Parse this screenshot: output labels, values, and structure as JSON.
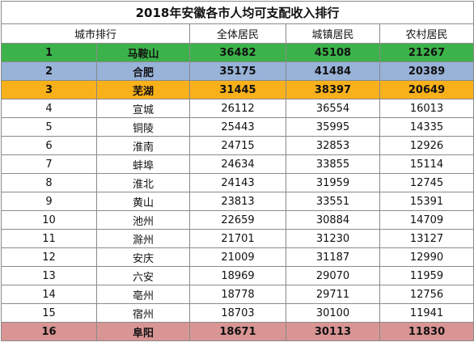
{
  "title": "2018年安徽各市人均可支配收入排行",
  "headers": {
    "rank_city": "城市排行",
    "overall": "全体居民",
    "urban": "城镇居民",
    "rural": "农村居民"
  },
  "rows": [
    {
      "rank": "1",
      "city": "马鞍山",
      "overall": "36482",
      "urban": "45108",
      "rural": "21267",
      "color": "#3cb34a",
      "bold": true
    },
    {
      "rank": "2",
      "city": "合肥",
      "overall": "35175",
      "urban": "41484",
      "rural": "20389",
      "color": "#98b2d8",
      "bold": true
    },
    {
      "rank": "3",
      "city": "芜湖",
      "overall": "31445",
      "urban": "38397",
      "rural": "20649",
      "color": "#f9b11b",
      "bold": true
    },
    {
      "rank": "4",
      "city": "宣城",
      "overall": "26112",
      "urban": "36554",
      "rural": "16013",
      "color": "",
      "bold": false
    },
    {
      "rank": "5",
      "city": "铜陵",
      "overall": "25443",
      "urban": "35995",
      "rural": "14335",
      "color": "",
      "bold": false
    },
    {
      "rank": "6",
      "city": "淮南",
      "overall": "24715",
      "urban": "32853",
      "rural": "12926",
      "color": "",
      "bold": false
    },
    {
      "rank": "7",
      "city": "蚌埠",
      "overall": "24634",
      "urban": "33855",
      "rural": "15114",
      "color": "",
      "bold": false
    },
    {
      "rank": "8",
      "city": "淮北",
      "overall": "24143",
      "urban": "31959",
      "rural": "12745",
      "color": "",
      "bold": false
    },
    {
      "rank": "9",
      "city": "黄山",
      "overall": "23813",
      "urban": "33551",
      "rural": "15391",
      "color": "",
      "bold": false
    },
    {
      "rank": "10",
      "city": "池州",
      "overall": "22659",
      "urban": "30884",
      "rural": "14709",
      "color": "",
      "bold": false
    },
    {
      "rank": "11",
      "city": "滁州",
      "overall": "21701",
      "urban": "31230",
      "rural": "13127",
      "color": "",
      "bold": false
    },
    {
      "rank": "12",
      "city": "安庆",
      "overall": "21009",
      "urban": "31187",
      "rural": "12990",
      "color": "",
      "bold": false
    },
    {
      "rank": "13",
      "city": "六安",
      "overall": "18969",
      "urban": "29070",
      "rural": "11959",
      "color": "",
      "bold": false
    },
    {
      "rank": "14",
      "city": "亳州",
      "overall": "18778",
      "urban": "29711",
      "rural": "12756",
      "color": "",
      "bold": false
    },
    {
      "rank": "15",
      "city": "宿州",
      "overall": "18703",
      "urban": "30100",
      "rural": "11941",
      "color": "",
      "bold": false
    },
    {
      "rank": "16",
      "city": "阜阳",
      "overall": "18671",
      "urban": "30113",
      "rural": "11830",
      "color": "#d99594",
      "bold": true
    }
  ]
}
